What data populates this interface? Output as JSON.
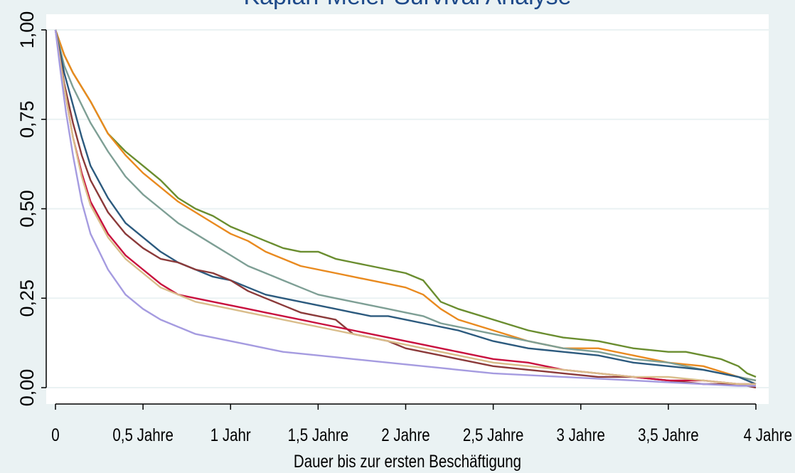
{
  "chart_data": {
    "type": "line",
    "title": "Kaplan-Meier Survival Analyse",
    "xlabel": "Dauer bis zur ersten Beschäftigung",
    "ylabel": "",
    "xlim": [
      0,
      4
    ],
    "ylim": [
      0,
      1
    ],
    "x_ticks": [
      {
        "value": 0,
        "label": "0"
      },
      {
        "value": 0.5,
        "label": "0,5 Jahre"
      },
      {
        "value": 1,
        "label": "1 Jahr"
      },
      {
        "value": 1.5,
        "label": "1,5 Jahre"
      },
      {
        "value": 2,
        "label": "2 Jahre"
      },
      {
        "value": 2.5,
        "label": "2,5 Jahre"
      },
      {
        "value": 3,
        "label": "3 Jahre"
      },
      {
        "value": 3.5,
        "label": "3,5 Jahre"
      },
      {
        "value": 4,
        "label": "4 Jahre"
      }
    ],
    "y_ticks": [
      {
        "value": 0,
        "label": "0,00"
      },
      {
        "value": 0.25,
        "label": "0,25"
      },
      {
        "value": 0.5,
        "label": "0,50"
      },
      {
        "value": 0.75,
        "label": "0,75"
      },
      {
        "value": 1,
        "label": "1,00"
      }
    ],
    "grid": true,
    "legend": "none",
    "series": [
      {
        "color": "#6a8d2f",
        "points": [
          [
            0,
            1
          ],
          [
            0.05,
            0.93
          ],
          [
            0.1,
            0.88
          ],
          [
            0.2,
            0.8
          ],
          [
            0.3,
            0.71
          ],
          [
            0.4,
            0.66
          ],
          [
            0.5,
            0.62
          ],
          [
            0.6,
            0.58
          ],
          [
            0.7,
            0.53
          ],
          [
            0.8,
            0.5
          ],
          [
            0.9,
            0.48
          ],
          [
            1.0,
            0.45
          ],
          [
            1.1,
            0.43
          ],
          [
            1.2,
            0.41
          ],
          [
            1.3,
            0.39
          ],
          [
            1.4,
            0.38
          ],
          [
            1.5,
            0.38
          ],
          [
            1.6,
            0.36
          ],
          [
            1.7,
            0.35
          ],
          [
            1.8,
            0.34
          ],
          [
            1.9,
            0.33
          ],
          [
            2.0,
            0.32
          ],
          [
            2.1,
            0.3
          ],
          [
            2.2,
            0.24
          ],
          [
            2.3,
            0.22
          ],
          [
            2.5,
            0.19
          ],
          [
            2.7,
            0.16
          ],
          [
            2.9,
            0.14
          ],
          [
            3.1,
            0.13
          ],
          [
            3.3,
            0.11
          ],
          [
            3.5,
            0.1
          ],
          [
            3.6,
            0.1
          ],
          [
            3.7,
            0.09
          ],
          [
            3.8,
            0.08
          ],
          [
            3.9,
            0.06
          ],
          [
            3.95,
            0.04
          ],
          [
            4.0,
            0.03
          ]
        ]
      },
      {
        "color": "#e98a1f",
        "points": [
          [
            0,
            1
          ],
          [
            0.05,
            0.93
          ],
          [
            0.1,
            0.88
          ],
          [
            0.2,
            0.8
          ],
          [
            0.3,
            0.71
          ],
          [
            0.4,
            0.65
          ],
          [
            0.5,
            0.6
          ],
          [
            0.6,
            0.56
          ],
          [
            0.7,
            0.52
          ],
          [
            0.8,
            0.49
          ],
          [
            0.9,
            0.46
          ],
          [
            1.0,
            0.43
          ],
          [
            1.1,
            0.41
          ],
          [
            1.2,
            0.38
          ],
          [
            1.3,
            0.36
          ],
          [
            1.4,
            0.34
          ],
          [
            1.5,
            0.33
          ],
          [
            1.6,
            0.32
          ],
          [
            1.7,
            0.31
          ],
          [
            1.8,
            0.3
          ],
          [
            1.9,
            0.29
          ],
          [
            2.0,
            0.28
          ],
          [
            2.1,
            0.26
          ],
          [
            2.2,
            0.22
          ],
          [
            2.3,
            0.19
          ],
          [
            2.5,
            0.16
          ],
          [
            2.7,
            0.13
          ],
          [
            2.9,
            0.11
          ],
          [
            3.1,
            0.11
          ],
          [
            3.3,
            0.09
          ],
          [
            3.5,
            0.07
          ],
          [
            3.7,
            0.06
          ],
          [
            3.9,
            0.03
          ],
          [
            4.0,
            0.02
          ]
        ]
      },
      {
        "color": "#7e9f95",
        "points": [
          [
            0,
            1
          ],
          [
            0.05,
            0.9
          ],
          [
            0.1,
            0.84
          ],
          [
            0.2,
            0.74
          ],
          [
            0.3,
            0.66
          ],
          [
            0.4,
            0.59
          ],
          [
            0.5,
            0.54
          ],
          [
            0.6,
            0.5
          ],
          [
            0.7,
            0.46
          ],
          [
            0.8,
            0.43
          ],
          [
            0.9,
            0.4
          ],
          [
            1.0,
            0.37
          ],
          [
            1.1,
            0.34
          ],
          [
            1.2,
            0.32
          ],
          [
            1.3,
            0.3
          ],
          [
            1.4,
            0.28
          ],
          [
            1.5,
            0.26
          ],
          [
            1.6,
            0.25
          ],
          [
            1.7,
            0.24
          ],
          [
            1.8,
            0.23
          ],
          [
            1.9,
            0.22
          ],
          [
            2.0,
            0.21
          ],
          [
            2.1,
            0.2
          ],
          [
            2.2,
            0.18
          ],
          [
            2.3,
            0.17
          ],
          [
            2.5,
            0.15
          ],
          [
            2.7,
            0.13
          ],
          [
            2.9,
            0.11
          ],
          [
            3.1,
            0.1
          ],
          [
            3.3,
            0.08
          ],
          [
            3.5,
            0.07
          ],
          [
            3.7,
            0.05
          ],
          [
            3.9,
            0.03
          ],
          [
            4.0,
            0.02
          ]
        ]
      },
      {
        "color": "#2c5a7e",
        "points": [
          [
            0,
            1
          ],
          [
            0.05,
            0.88
          ],
          [
            0.1,
            0.79
          ],
          [
            0.15,
            0.7
          ],
          [
            0.2,
            0.62
          ],
          [
            0.3,
            0.53
          ],
          [
            0.4,
            0.46
          ],
          [
            0.5,
            0.42
          ],
          [
            0.6,
            0.38
          ],
          [
            0.7,
            0.35
          ],
          [
            0.8,
            0.33
          ],
          [
            0.9,
            0.31
          ],
          [
            1.0,
            0.3
          ],
          [
            1.1,
            0.28
          ],
          [
            1.2,
            0.26
          ],
          [
            1.3,
            0.25
          ],
          [
            1.4,
            0.24
          ],
          [
            1.5,
            0.23
          ],
          [
            1.6,
            0.22
          ],
          [
            1.7,
            0.21
          ],
          [
            1.8,
            0.2
          ],
          [
            1.9,
            0.2
          ],
          [
            2.0,
            0.19
          ],
          [
            2.1,
            0.18
          ],
          [
            2.2,
            0.17
          ],
          [
            2.3,
            0.16
          ],
          [
            2.5,
            0.13
          ],
          [
            2.7,
            0.11
          ],
          [
            2.9,
            0.1
          ],
          [
            3.1,
            0.09
          ],
          [
            3.3,
            0.07
          ],
          [
            3.5,
            0.06
          ],
          [
            3.7,
            0.05
          ],
          [
            3.9,
            0.03
          ],
          [
            4.0,
            0.01
          ]
        ]
      },
      {
        "color": "#8b3a3a",
        "points": [
          [
            0,
            1
          ],
          [
            0.05,
            0.85
          ],
          [
            0.1,
            0.74
          ],
          [
            0.15,
            0.65
          ],
          [
            0.2,
            0.58
          ],
          [
            0.3,
            0.49
          ],
          [
            0.4,
            0.43
          ],
          [
            0.5,
            0.39
          ],
          [
            0.6,
            0.36
          ],
          [
            0.7,
            0.35
          ],
          [
            0.8,
            0.33
          ],
          [
            0.9,
            0.32
          ],
          [
            1.0,
            0.3
          ],
          [
            1.1,
            0.27
          ],
          [
            1.2,
            0.25
          ],
          [
            1.3,
            0.23
          ],
          [
            1.4,
            0.21
          ],
          [
            1.5,
            0.2
          ],
          [
            1.6,
            0.19
          ],
          [
            1.7,
            0.15
          ],
          [
            1.8,
            0.14
          ],
          [
            1.9,
            0.13
          ],
          [
            2.0,
            0.11
          ],
          [
            2.1,
            0.1
          ],
          [
            2.2,
            0.09
          ],
          [
            2.3,
            0.08
          ],
          [
            2.5,
            0.06
          ],
          [
            2.7,
            0.05
          ],
          [
            2.9,
            0.04
          ],
          [
            3.1,
            0.03
          ],
          [
            3.3,
            0.03
          ],
          [
            3.5,
            0.02
          ],
          [
            3.7,
            0.01
          ],
          [
            3.9,
            0.01
          ],
          [
            4.0,
            0
          ]
        ]
      },
      {
        "color": "#c8103e",
        "points": [
          [
            0,
            1
          ],
          [
            0.05,
            0.84
          ],
          [
            0.1,
            0.7
          ],
          [
            0.15,
            0.6
          ],
          [
            0.2,
            0.52
          ],
          [
            0.3,
            0.43
          ],
          [
            0.4,
            0.37
          ],
          [
            0.5,
            0.33
          ],
          [
            0.6,
            0.29
          ],
          [
            0.7,
            0.26
          ],
          [
            0.8,
            0.25
          ],
          [
            0.9,
            0.24
          ],
          [
            1.0,
            0.23
          ],
          [
            1.1,
            0.22
          ],
          [
            1.2,
            0.21
          ],
          [
            1.3,
            0.2
          ],
          [
            1.4,
            0.19
          ],
          [
            1.5,
            0.18
          ],
          [
            1.6,
            0.17
          ],
          [
            1.7,
            0.16
          ],
          [
            1.8,
            0.15
          ],
          [
            1.9,
            0.14
          ],
          [
            2.0,
            0.13
          ],
          [
            2.1,
            0.12
          ],
          [
            2.2,
            0.11
          ],
          [
            2.3,
            0.1
          ],
          [
            2.5,
            0.08
          ],
          [
            2.7,
            0.07
          ],
          [
            2.9,
            0.05
          ],
          [
            3.1,
            0.04
          ],
          [
            3.3,
            0.03
          ],
          [
            3.5,
            0.02
          ],
          [
            3.7,
            0.02
          ],
          [
            3.9,
            0.01
          ],
          [
            4.0,
            0.01
          ]
        ]
      },
      {
        "color": "#d9bd8a",
        "points": [
          [
            0,
            1
          ],
          [
            0.05,
            0.84
          ],
          [
            0.1,
            0.7
          ],
          [
            0.15,
            0.59
          ],
          [
            0.2,
            0.51
          ],
          [
            0.3,
            0.42
          ],
          [
            0.4,
            0.36
          ],
          [
            0.5,
            0.32
          ],
          [
            0.6,
            0.28
          ],
          [
            0.7,
            0.26
          ],
          [
            0.8,
            0.24
          ],
          [
            0.9,
            0.23
          ],
          [
            1.0,
            0.22
          ],
          [
            1.1,
            0.21
          ],
          [
            1.2,
            0.2
          ],
          [
            1.3,
            0.19
          ],
          [
            1.4,
            0.18
          ],
          [
            1.5,
            0.17
          ],
          [
            1.6,
            0.16
          ],
          [
            1.7,
            0.15
          ],
          [
            1.8,
            0.14
          ],
          [
            1.9,
            0.13
          ],
          [
            2.0,
            0.12
          ],
          [
            2.1,
            0.11
          ],
          [
            2.2,
            0.1
          ],
          [
            2.3,
            0.09
          ],
          [
            2.5,
            0.07
          ],
          [
            2.7,
            0.06
          ],
          [
            2.9,
            0.05
          ],
          [
            3.1,
            0.04
          ],
          [
            3.3,
            0.03
          ],
          [
            3.5,
            0.03
          ],
          [
            3.7,
            0.02
          ],
          [
            3.9,
            0.01
          ],
          [
            4.0,
            0.01
          ]
        ]
      },
      {
        "color": "#a59be0",
        "points": [
          [
            0,
            1
          ],
          [
            0.03,
            0.88
          ],
          [
            0.06,
            0.77
          ],
          [
            0.1,
            0.65
          ],
          [
            0.15,
            0.52
          ],
          [
            0.2,
            0.43
          ],
          [
            0.3,
            0.33
          ],
          [
            0.4,
            0.26
          ],
          [
            0.5,
            0.22
          ],
          [
            0.6,
            0.19
          ],
          [
            0.7,
            0.17
          ],
          [
            0.8,
            0.15
          ],
          [
            0.9,
            0.14
          ],
          [
            1.0,
            0.13
          ],
          [
            1.1,
            0.12
          ],
          [
            1.2,
            0.11
          ],
          [
            1.3,
            0.1
          ],
          [
            1.4,
            0.095
          ],
          [
            1.5,
            0.09
          ],
          [
            1.6,
            0.085
          ],
          [
            1.7,
            0.08
          ],
          [
            1.8,
            0.075
          ],
          [
            1.9,
            0.07
          ],
          [
            2.0,
            0.065
          ],
          [
            2.1,
            0.06
          ],
          [
            2.2,
            0.055
          ],
          [
            2.3,
            0.05
          ],
          [
            2.5,
            0.04
          ],
          [
            2.7,
            0.035
          ],
          [
            2.9,
            0.03
          ],
          [
            3.1,
            0.025
          ],
          [
            3.3,
            0.02
          ],
          [
            3.5,
            0.015
          ],
          [
            3.7,
            0.01
          ],
          [
            3.9,
            0.005
          ],
          [
            4.0,
            0.005
          ]
        ]
      }
    ]
  }
}
